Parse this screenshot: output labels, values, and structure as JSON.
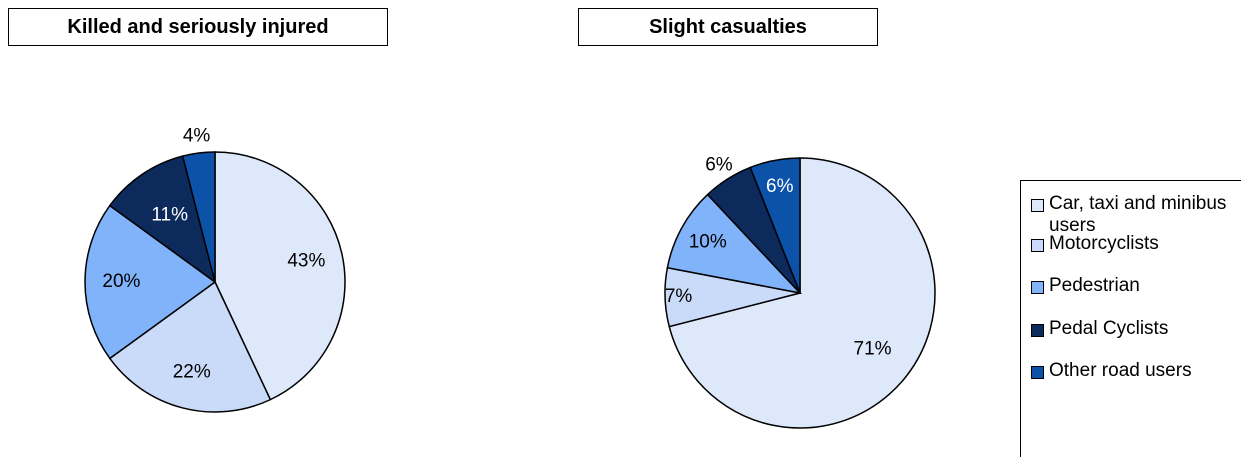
{
  "chart_data": [
    {
      "type": "pie",
      "title": "Killed and seriously injured",
      "values": [
        43,
        22,
        20,
        11,
        4
      ],
      "value_labels": [
        "43%",
        "22%",
        "20%",
        "11%",
        "4%"
      ],
      "colors": [
        "#dde9fb",
        "#c9dbf8",
        "#80b3fa",
        "#0d2a5c",
        "#0b52a8"
      ]
    },
    {
      "type": "pie",
      "title": "Slight casualties",
      "categories": [
        "Car, taxi and minibus users",
        "Motorcyclists",
        "Pedestrian",
        "Pedal Cyclists",
        "Other road users"
      ],
      "values": [
        71,
        7,
        10,
        6,
        6
      ],
      "value_labels": [
        "71%",
        "7%",
        "10%",
        "6%",
        "6%"
      ],
      "colors": [
        "#dde9fb",
        "#c9dbf8",
        "#80b3fa",
        "#0d2a5c",
        "#0b52a8"
      ]
    }
  ]
}
